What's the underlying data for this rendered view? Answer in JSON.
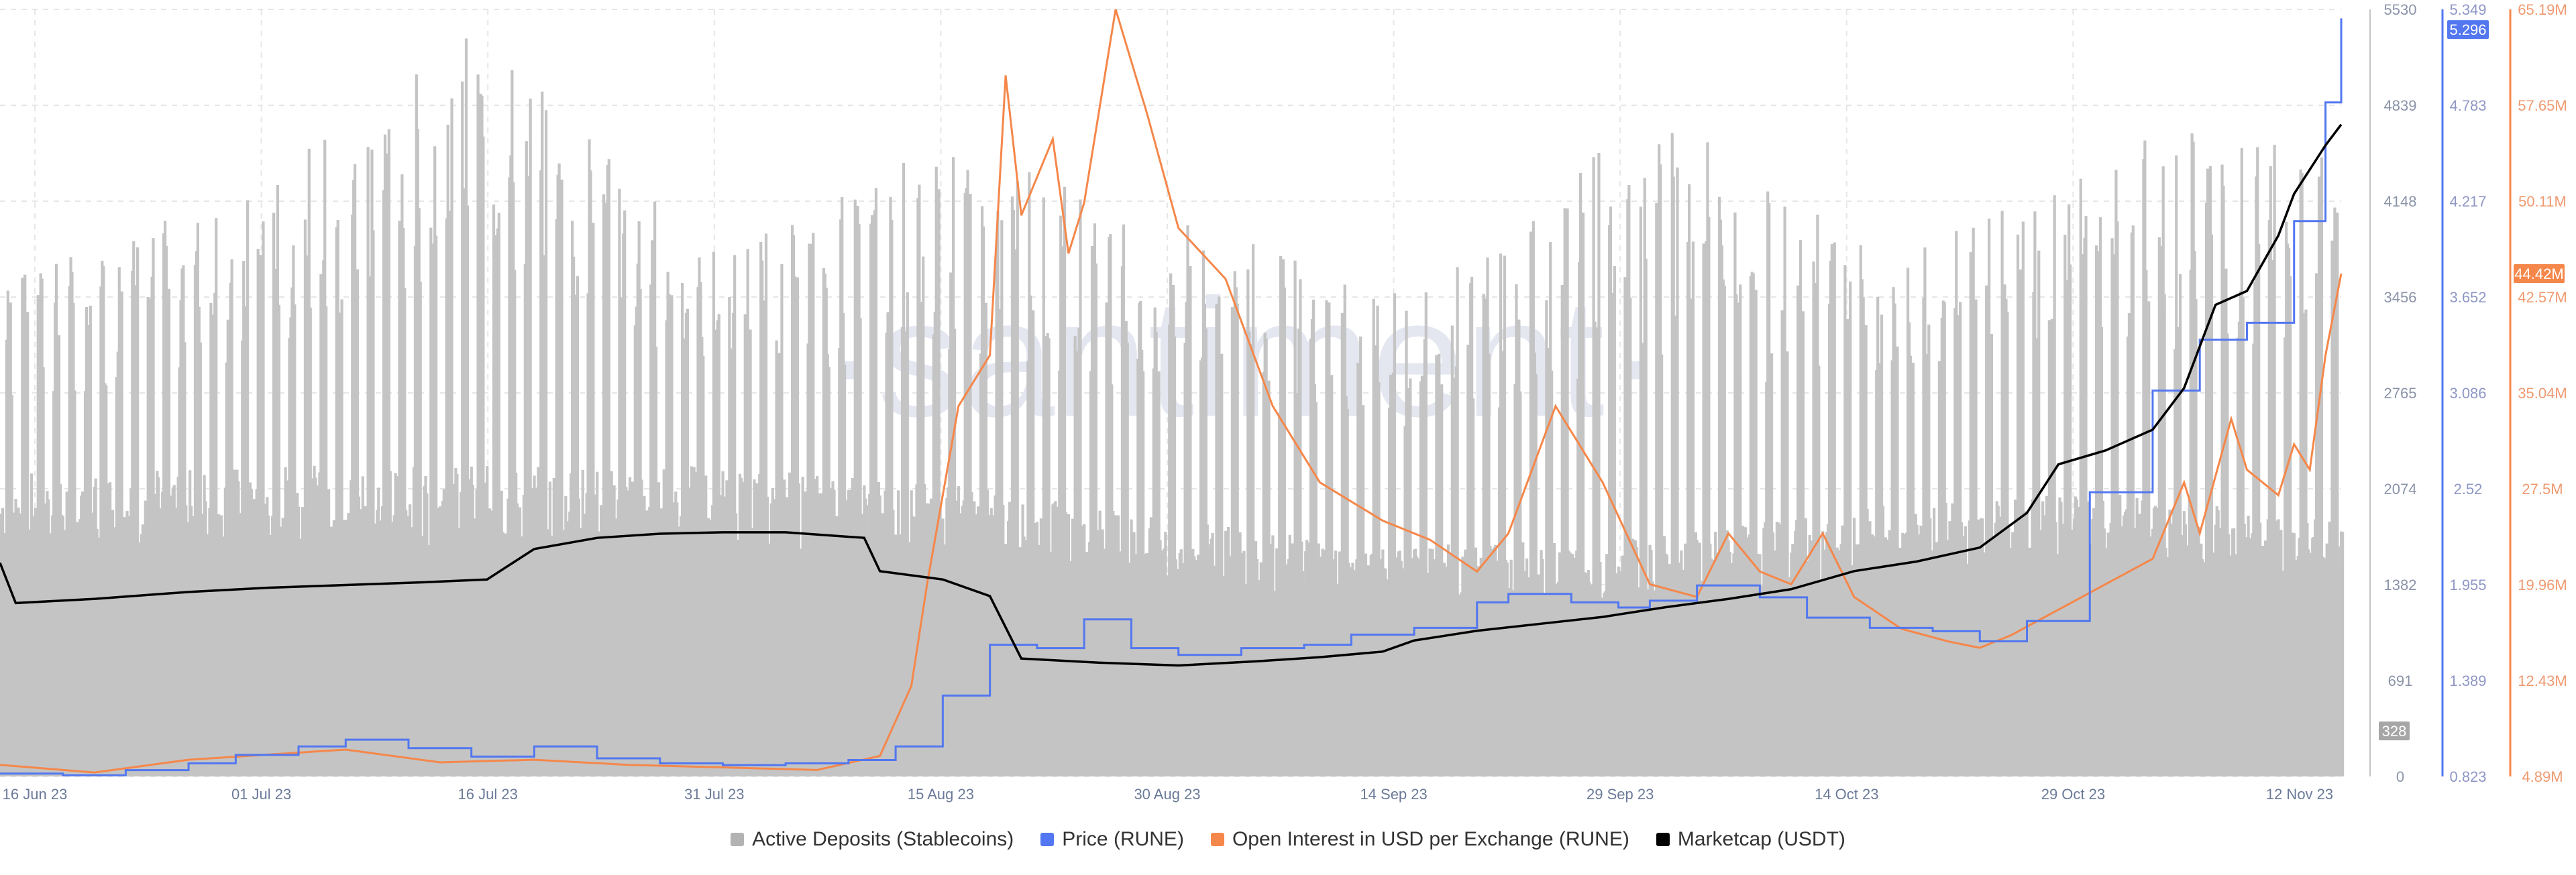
{
  "colors": {
    "deposits": "#c4c4c4",
    "price": "#5277f0",
    "oi": "#f5874a",
    "marketcap": "#000000",
    "grid": "#e6e6e6",
    "watermark": "#e4e6f0"
  },
  "watermark": "·santiment·",
  "chart_data": {
    "type": "line",
    "x_ticks": [
      "16 Jun 23",
      "01 Jul 23",
      "16 Jul 23",
      "31 Jul 23",
      "15 Aug 23",
      "30 Aug 23",
      "14 Sep 23",
      "29 Sep 23",
      "14 Oct 23",
      "29 Oct 23",
      "12 Nov 23"
    ],
    "x_range": [
      "2023-06-16",
      "2023-11-12"
    ],
    "axes": {
      "deposits": {
        "ticks": [
          "5530",
          "4839",
          "4148",
          "3456",
          "2765",
          "2074",
          "1382",
          "691",
          "0"
        ],
        "range": [
          0,
          5530
        ],
        "current": "328"
      },
      "price": {
        "ticks": [
          "5.349",
          "4.783",
          "4.217",
          "3.652",
          "3.086",
          "2.52",
          "1.955",
          "1.389",
          "0.823"
        ],
        "range": [
          0.823,
          5.349
        ],
        "current": "5.296"
      },
      "oi": {
        "ticks": [
          "65.19M",
          "57.65M",
          "50.11M",
          "42.57M",
          "35.04M",
          "27.5M",
          "19.96M",
          "12.43M",
          "4.89M"
        ],
        "range": [
          4.89,
          65.19
        ],
        "current": "44.42M"
      }
    },
    "legend": [
      {
        "label": "Active Deposits (Stablecoins)",
        "color": "#b3b3b3"
      },
      {
        "label": "Price (RUNE)",
        "color": "#5277f0"
      },
      {
        "label": "Open Interest in USD per Exchange (RUNE)",
        "color": "#f5874a"
      },
      {
        "label": "Marketcap (USDT)",
        "color": "#000000"
      }
    ],
    "series": [
      {
        "name": "Active Deposits (Stablecoins)",
        "kind": "bars",
        "axis": "deposits",
        "base": [
          [
            "2023-06-16",
            1900
          ],
          [
            "2023-07-01",
            1950
          ],
          [
            "2023-07-16",
            1950
          ],
          [
            "2023-07-31",
            1950
          ],
          [
            "2023-08-15",
            1850
          ],
          [
            "2023-08-30",
            1600
          ],
          [
            "2023-09-14",
            1450
          ],
          [
            "2023-09-29",
            1500
          ],
          [
            "2023-10-14",
            1700
          ],
          [
            "2023-10-29",
            1800
          ],
          [
            "2023-11-12",
            1600
          ]
        ],
        "peaks": [
          [
            "2023-06-16",
            3600
          ],
          [
            "2023-07-01",
            4200
          ],
          [
            "2023-07-16",
            5450
          ],
          [
            "2023-07-31",
            3800
          ],
          [
            "2023-08-15",
            4600
          ],
          [
            "2023-08-30",
            4000
          ],
          [
            "2023-09-14",
            3500
          ],
          [
            "2023-09-29",
            4900
          ],
          [
            "2023-10-14",
            3700
          ],
          [
            "2023-10-29",
            4600
          ],
          [
            "2023-11-12",
            4900
          ]
        ]
      },
      {
        "name": "Price (RUNE)",
        "kind": "step",
        "axis": "price",
        "values": [
          [
            "2023-06-16",
            0.84
          ],
          [
            "2023-06-20",
            0.83
          ],
          [
            "2023-06-24",
            0.86
          ],
          [
            "2023-06-28",
            0.9
          ],
          [
            "2023-07-01",
            0.95
          ],
          [
            "2023-07-05",
            1.0
          ],
          [
            "2023-07-08",
            1.04
          ],
          [
            "2023-07-12",
            0.99
          ],
          [
            "2023-07-16",
            0.94
          ],
          [
            "2023-07-20",
            1.0
          ],
          [
            "2023-07-24",
            0.93
          ],
          [
            "2023-07-28",
            0.9
          ],
          [
            "2023-08-01",
            0.89
          ],
          [
            "2023-08-05",
            0.9
          ],
          [
            "2023-08-09",
            0.92
          ],
          [
            "2023-08-12",
            1.0
          ],
          [
            "2023-08-15",
            1.3
          ],
          [
            "2023-08-18",
            1.6
          ],
          [
            "2023-08-21",
            1.58
          ],
          [
            "2023-08-24",
            1.75
          ],
          [
            "2023-08-27",
            1.58
          ],
          [
            "2023-08-30",
            1.54
          ],
          [
            "2023-09-03",
            1.58
          ],
          [
            "2023-09-07",
            1.6
          ],
          [
            "2023-09-10",
            1.66
          ],
          [
            "2023-09-14",
            1.7
          ],
          [
            "2023-09-18",
            1.85
          ],
          [
            "2023-09-20",
            1.9
          ],
          [
            "2023-09-24",
            1.85
          ],
          [
            "2023-09-27",
            1.82
          ],
          [
            "2023-09-29",
            1.86
          ],
          [
            "2023-10-02",
            1.95
          ],
          [
            "2023-10-06",
            1.88
          ],
          [
            "2023-10-09",
            1.76
          ],
          [
            "2023-10-13",
            1.7
          ],
          [
            "2023-10-17",
            1.68
          ],
          [
            "2023-10-20",
            1.62
          ],
          [
            "2023-10-23",
            1.74
          ],
          [
            "2023-10-27",
            2.5
          ],
          [
            "2023-10-31",
            3.1
          ],
          [
            "2023-11-03",
            3.4
          ],
          [
            "2023-11-06",
            3.5
          ],
          [
            "2023-11-09",
            4.1
          ],
          [
            "2023-11-11",
            4.8
          ],
          [
            "2023-11-12",
            5.296
          ]
        ]
      },
      {
        "name": "Open Interest in USD per Exchange (RUNE)",
        "kind": "line",
        "axis": "oi",
        "values": [
          [
            "2023-06-16",
            5.8
          ],
          [
            "2023-06-22",
            5.2
          ],
          [
            "2023-06-28",
            6.2
          ],
          [
            "2023-07-03",
            6.6
          ],
          [
            "2023-07-08",
            7.0
          ],
          [
            "2023-07-14",
            6.0
          ],
          [
            "2023-07-20",
            6.2
          ],
          [
            "2023-07-26",
            5.8
          ],
          [
            "2023-08-01",
            5.6
          ],
          [
            "2023-08-07",
            5.4
          ],
          [
            "2023-08-11",
            6.5
          ],
          [
            "2023-08-13",
            12.0
          ],
          [
            "2023-08-14",
            20.0
          ],
          [
            "2023-08-16",
            34.0
          ],
          [
            "2023-08-18",
            38.0
          ],
          [
            "2023-08-19",
            60.0
          ],
          [
            "2023-08-20",
            49.0
          ],
          [
            "2023-08-22",
            55.0
          ],
          [
            "2023-08-23",
            46.0
          ],
          [
            "2023-08-24",
            50.0
          ],
          [
            "2023-08-26",
            65.2
          ],
          [
            "2023-08-28",
            57.0
          ],
          [
            "2023-08-30",
            48.0
          ],
          [
            "2023-09-02",
            44.0
          ],
          [
            "2023-09-05",
            34.0
          ],
          [
            "2023-09-08",
            28.0
          ],
          [
            "2023-09-12",
            25.0
          ],
          [
            "2023-09-15",
            23.5
          ],
          [
            "2023-09-18",
            21.0
          ],
          [
            "2023-09-20",
            24.0
          ],
          [
            "2023-09-23",
            34.0
          ],
          [
            "2023-09-26",
            28.0
          ],
          [
            "2023-09-29",
            20.0
          ],
          [
            "2023-10-02",
            19.0
          ],
          [
            "2023-10-04",
            24.0
          ],
          [
            "2023-10-06",
            21.0
          ],
          [
            "2023-10-08",
            20.0
          ],
          [
            "2023-10-10",
            24.0
          ],
          [
            "2023-10-12",
            19.0
          ],
          [
            "2023-10-15",
            16.5
          ],
          [
            "2023-10-18",
            15.5
          ],
          [
            "2023-10-20",
            15.0
          ],
          [
            "2023-10-22",
            16.0
          ],
          [
            "2023-10-25",
            18.0
          ],
          [
            "2023-10-28",
            20.0
          ],
          [
            "2023-10-31",
            22.0
          ],
          [
            "2023-11-02",
            28.0
          ],
          [
            "2023-11-03",
            24.0
          ],
          [
            "2023-11-05",
            33.0
          ],
          [
            "2023-11-06",
            29.0
          ],
          [
            "2023-11-08",
            27.0
          ],
          [
            "2023-11-09",
            31.0
          ],
          [
            "2023-11-10",
            29.0
          ],
          [
            "2023-11-11",
            38.0
          ],
          [
            "2023-11-12",
            44.42
          ]
        ]
      },
      {
        "name": "Marketcap (USDT)",
        "kind": "line",
        "axis": "deposits",
        "values": [
          [
            "2023-06-16",
            1540
          ],
          [
            "2023-06-17",
            1250
          ],
          [
            "2023-06-22",
            1280
          ],
          [
            "2023-06-28",
            1330
          ],
          [
            "2023-07-03",
            1360
          ],
          [
            "2023-07-08",
            1380
          ],
          [
            "2023-07-13",
            1400
          ],
          [
            "2023-07-17",
            1420
          ],
          [
            "2023-07-20",
            1640
          ],
          [
            "2023-07-24",
            1720
          ],
          [
            "2023-07-28",
            1750
          ],
          [
            "2023-08-01",
            1760
          ],
          [
            "2023-08-05",
            1760
          ],
          [
            "2023-08-10",
            1720
          ],
          [
            "2023-08-11",
            1480
          ],
          [
            "2023-08-15",
            1420
          ],
          [
            "2023-08-18",
            1300
          ],
          [
            "2023-08-20",
            850
          ],
          [
            "2023-08-25",
            820
          ],
          [
            "2023-08-30",
            800
          ],
          [
            "2023-09-04",
            830
          ],
          [
            "2023-09-08",
            860
          ],
          [
            "2023-09-12",
            900
          ],
          [
            "2023-09-14",
            980
          ],
          [
            "2023-09-18",
            1050
          ],
          [
            "2023-09-22",
            1100
          ],
          [
            "2023-09-26",
            1150
          ],
          [
            "2023-09-30",
            1220
          ],
          [
            "2023-10-04",
            1280
          ],
          [
            "2023-10-08",
            1350
          ],
          [
            "2023-10-12",
            1480
          ],
          [
            "2023-10-16",
            1550
          ],
          [
            "2023-10-20",
            1650
          ],
          [
            "2023-10-23",
            1900
          ],
          [
            "2023-10-25",
            2250
          ],
          [
            "2023-10-28",
            2350
          ],
          [
            "2023-10-31",
            2500
          ],
          [
            "2023-11-02",
            2800
          ],
          [
            "2023-11-04",
            3400
          ],
          [
            "2023-11-06",
            3500
          ],
          [
            "2023-11-08",
            3900
          ],
          [
            "2023-11-09",
            4200
          ],
          [
            "2023-11-11",
            4550
          ],
          [
            "2023-11-12",
            4700
          ]
        ]
      }
    ]
  }
}
